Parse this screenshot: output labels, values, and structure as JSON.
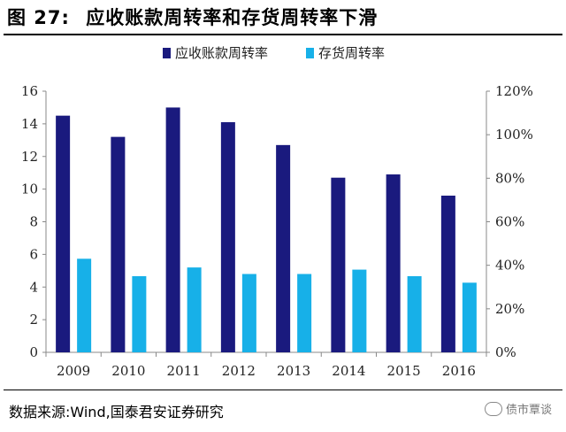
{
  "header": {
    "figure_label": "图 27:",
    "title": "应收账款周转率和存货周转率下滑"
  },
  "chart_data": {
    "type": "bar",
    "categories": [
      "2009",
      "2010",
      "2011",
      "2012",
      "2013",
      "2014",
      "2015",
      "2016"
    ],
    "series": [
      {
        "name": "应收账款周转率",
        "axis": "left",
        "color": "#1a1a7e",
        "values": [
          14.5,
          13.2,
          15.0,
          14.1,
          12.7,
          10.7,
          10.9,
          9.6
        ]
      },
      {
        "name": "存货周转率",
        "axis": "right",
        "color": "#17b0e8",
        "values": [
          0.43,
          0.35,
          0.39,
          0.36,
          0.36,
          0.38,
          0.35,
          0.32
        ]
      }
    ],
    "y_left": {
      "min": 0,
      "max": 16,
      "ticks": [
        "0",
        "2",
        "4",
        "6",
        "8",
        "10",
        "12",
        "14",
        "16"
      ]
    },
    "y_right": {
      "min": 0,
      "max": 1.2,
      "ticks": [
        "0%",
        "20%",
        "40%",
        "60%",
        "80%",
        "100%",
        "120%"
      ]
    },
    "legend_position": "top-center",
    "grid": false
  },
  "footer": {
    "source": "数据来源:Wind,国泰君安证券研究",
    "watermark": "债市覃谈"
  }
}
